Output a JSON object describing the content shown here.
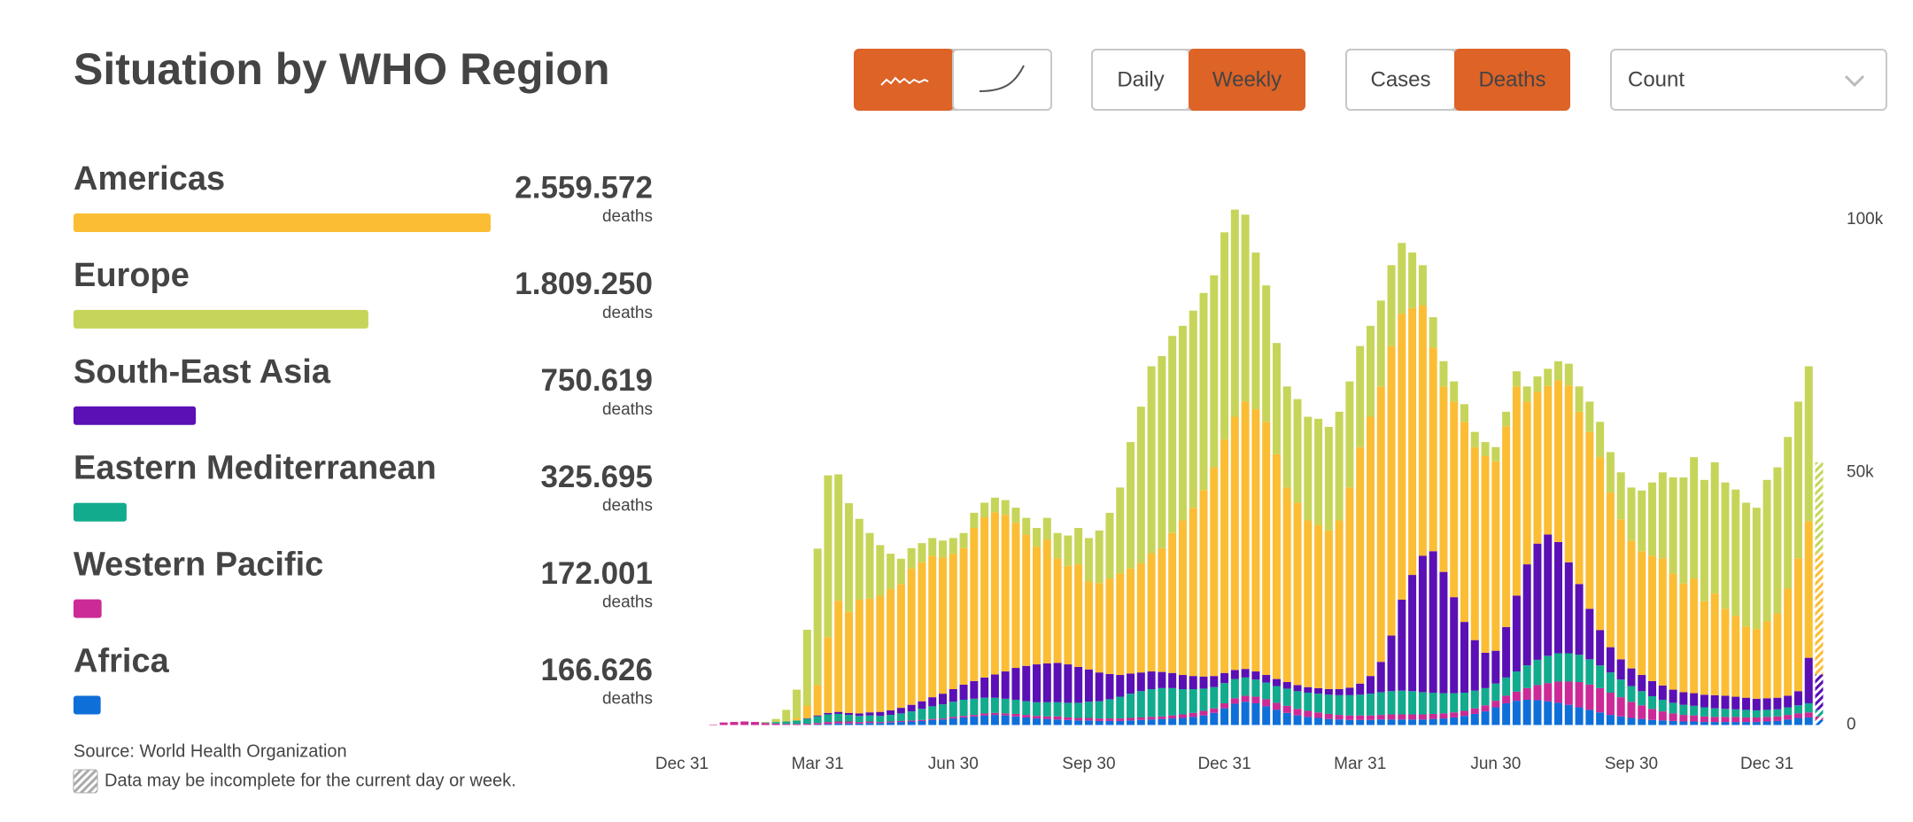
{
  "chart_data": {
    "type": "stacked_bar",
    "title": "Situation by WHO Region",
    "value_unit": "deaths",
    "source": "Source:  World Health Organization",
    "note": "Data may be incomplete for the current day or week.",
    "incomplete_last": true,
    "stack_order": [
      5,
      4,
      3,
      2,
      0,
      1
    ],
    "ylim": [
      0,
      105000
    ],
    "yticks": [
      0,
      {
        "value": 50000,
        "label": "50k"
      },
      {
        "value": 100000,
        "label": "100k"
      }
    ],
    "categories": [
      "Dec 31",
      null,
      null,
      null,
      null,
      null,
      null,
      null,
      null,
      null,
      null,
      null,
      null,
      "Mar 31",
      null,
      null,
      null,
      null,
      null,
      null,
      null,
      null,
      null,
      null,
      null,
      null,
      "Jun 30",
      null,
      null,
      null,
      null,
      null,
      null,
      null,
      null,
      null,
      null,
      null,
      null,
      "Sep 30",
      null,
      null,
      null,
      null,
      null,
      null,
      null,
      null,
      null,
      null,
      null,
      null,
      "Dec 31",
      null,
      null,
      null,
      null,
      null,
      null,
      null,
      null,
      null,
      null,
      null,
      null,
      "Mar 31",
      null,
      null,
      null,
      null,
      null,
      null,
      null,
      null,
      null,
      null,
      null,
      null,
      "Jun 30",
      null,
      null,
      null,
      null,
      null,
      null,
      null,
      null,
      null,
      null,
      null,
      null,
      "Sep 30",
      null,
      null,
      null,
      null,
      null,
      null,
      null,
      null,
      null,
      null,
      null,
      null,
      "Dec 31",
      null,
      null,
      null,
      null,
      null
    ],
    "series": [
      {
        "name": "Americas",
        "color": "#fbbd34",
        "total": 2559572,
        "total_label": "2.559.572",
        "values": [
          0,
          0,
          0,
          0,
          0,
          0,
          0,
          0,
          0,
          0,
          100,
          500,
          2500,
          6000,
          15000,
          22000,
          20000,
          22500,
          22500,
          23000,
          24000,
          24500,
          27000,
          27500,
          28000,
          27000,
          26800,
          27000,
          30300,
          31700,
          32100,
          31000,
          28700,
          26000,
          23300,
          24500,
          20700,
          19500,
          20300,
          17400,
          17700,
          18900,
          20100,
          20800,
          21600,
          23400,
          24500,
          27700,
          30600,
          33300,
          36900,
          41300,
          46200,
          50100,
          52900,
          51900,
          50100,
          44500,
          38500,
          36100,
          33000,
          32300,
          31400,
          33400,
          39600,
          46800,
          51300,
          54500,
          57300,
          56600,
          52800,
          49500,
          40300,
          36700,
          38700,
          39600,
          38200,
          38900,
          37500,
          39700,
          41400,
          32200,
          30000,
          29400,
          32000,
          35000,
          34100,
          35000,
          34200,
          30600,
          27700,
          25300,
          24500,
          24800,
          25200,
          23000,
          21500,
          22700,
          18500,
          20100,
          17200,
          16000,
          14100,
          13800,
          15200,
          16600,
          21200,
          26300,
          27000,
          24000
        ]
      },
      {
        "name": "Europe",
        "color": "#c6d55a",
        "total": 1809250,
        "total_label": "1.809.250",
        "values": [
          0,
          0,
          0,
          0,
          0,
          0,
          0,
          0,
          100,
          600,
          2200,
          5600,
          15000,
          27000,
          32000,
          25000,
          21500,
          16000,
          13000,
          10000,
          7000,
          5000,
          4000,
          3800,
          3500,
          3300,
          3100,
          3000,
          3000,
          2900,
          2900,
          2900,
          3000,
          3300,
          3700,
          4300,
          5000,
          6000,
          7200,
          8600,
          10400,
          13000,
          17000,
          25000,
          31000,
          37000,
          38000,
          39000,
          38500,
          39000,
          39000,
          38000,
          41000,
          41000,
          37000,
          31000,
          27000,
          22000,
          20000,
          20500,
          20500,
          21000,
          20500,
          21500,
          21000,
          20000,
          18000,
          17000,
          16000,
          14000,
          11000,
          8000,
          6000,
          5000,
          4000,
          3500,
          3000,
          2800,
          2800,
          2900,
          3000,
          3000,
          3100,
          3400,
          3800,
          4300,
          5000,
          6000,
          7000,
          8000,
          9300,
          10500,
          12000,
          14500,
          17000,
          19000,
          21000,
          24000,
          24000,
          26000,
          25000,
          25000,
          24500,
          24000,
          28000,
          29000,
          30000,
          31000,
          30700,
          18000
        ]
      },
      {
        "name": "South-East Asia",
        "color": "#5a10b4",
        "total": 750619,
        "total_label": "750.619",
        "values": [
          0,
          0,
          0,
          0,
          0,
          0,
          0,
          0,
          0,
          0,
          0,
          0,
          100,
          200,
          300,
          400,
          400,
          500,
          600,
          800,
          900,
          1100,
          1300,
          1500,
          1800,
          2100,
          2500,
          3000,
          3500,
          4000,
          4600,
          5400,
          6300,
          7000,
          7500,
          7700,
          7800,
          7600,
          7100,
          6400,
          5700,
          5000,
          4300,
          4000,
          3700,
          3500,
          3200,
          3000,
          2800,
          2600,
          2400,
          2200,
          2000,
          1800,
          1700,
          1600,
          1500,
          1400,
          1300,
          1200,
          1100,
          1100,
          1100,
          1200,
          1500,
          2200,
          3500,
          6000,
          11000,
          18000,
          23000,
          27000,
          28000,
          24000,
          19000,
          14000,
          10000,
          7000,
          6500,
          10000,
          15000,
          20000,
          23000,
          24000,
          22000,
          18000,
          14000,
          10000,
          7000,
          5000,
          4000,
          3500,
          3200,
          3000,
          2800,
          2600,
          2500,
          2500,
          2500,
          2600,
          2600,
          2500,
          2400,
          2300,
          2300,
          2300,
          2300,
          2800,
          9000,
          7000
        ]
      },
      {
        "name": "Eastern Mediterranean",
        "color": "#12ab8e",
        "total": 325695,
        "total_label": "325.695",
        "values": [
          0,
          0,
          0,
          0,
          0,
          0,
          0,
          0,
          100,
          300,
          500,
          700,
          1000,
          1300,
          1500,
          1500,
          1300,
          1200,
          1200,
          1200,
          1300,
          1500,
          1800,
          2200,
          2500,
          2800,
          3000,
          3200,
          3200,
          3100,
          3000,
          2900,
          2800,
          2700,
          2700,
          2800,
          2800,
          2900,
          3000,
          3200,
          3400,
          3800,
          4300,
          4800,
          5200,
          5500,
          5600,
          5400,
          5000,
          4700,
          4400,
          4200,
          4000,
          3800,
          3600,
          3400,
          3300,
          3300,
          3400,
          3500,
          3600,
          3700,
          3800,
          3900,
          4000,
          4100,
          4300,
          4500,
          4600,
          4700,
          4600,
          4400,
          4200,
          4000,
          3800,
          3600,
          3500,
          3400,
          3400,
          3600,
          4000,
          4500,
          5000,
          5400,
          5600,
          5600,
          5400,
          5000,
          4500,
          4000,
          3500,
          3100,
          2800,
          2500,
          2300,
          2100,
          2000,
          1900,
          1800,
          1700,
          1600,
          1500,
          1500,
          1400,
          1400,
          1400,
          1500,
          1600,
          1800,
          1300
        ]
      },
      {
        "name": "Western Pacific",
        "color": "#cc2a96",
        "total": 172001,
        "total_label": "172.001",
        "values": [
          0,
          0,
          0,
          100,
          500,
          600,
          700,
          600,
          400,
          300,
          200,
          200,
          200,
          300,
          400,
          400,
          400,
          300,
          300,
          200,
          200,
          200,
          200,
          200,
          200,
          200,
          300,
          300,
          300,
          400,
          400,
          400,
          500,
          500,
          500,
          500,
          600,
          500,
          500,
          500,
          500,
          500,
          500,
          500,
          500,
          500,
          500,
          600,
          700,
          800,
          900,
          900,
          1000,
          1100,
          1200,
          1300,
          1400,
          1400,
          1400,
          1300,
          1200,
          1100,
          1000,
          900,
          900,
          900,
          900,
          900,
          1000,
          1000,
          1000,
          1000,
          1000,
          1000,
          1000,
          1000,
          1100,
          1200,
          1300,
          1500,
          1800,
          2300,
          3000,
          3600,
          4200,
          4600,
          5000,
          5000,
          4800,
          4400,
          3800,
          3200,
          2700,
          2200,
          1800,
          1500,
          1300,
          1200,
          1100,
          1000,
          1000,
          1000,
          900,
          900,
          900,
          900,
          900,
          900,
          1000,
          700
        ]
      },
      {
        "name": "Africa",
        "color": "#0f6fd8",
        "total": 166626,
        "total_label": "166.626",
        "values": [
          0,
          0,
          0,
          0,
          0,
          0,
          0,
          0,
          0,
          0,
          0,
          0,
          50,
          100,
          200,
          300,
          300,
          300,
          400,
          400,
          500,
          600,
          700,
          800,
          1000,
          1100,
          1300,
          1500,
          1700,
          1900,
          2000,
          1900,
          1700,
          1500,
          1300,
          1200,
          1100,
          1000,
          900,
          900,
          800,
          800,
          800,
          900,
          1000,
          1100,
          1200,
          1300,
          1400,
          1600,
          1900,
          2400,
          3300,
          4200,
          4600,
          4300,
          3700,
          3000,
          2400,
          1900,
          1600,
          1400,
          1200,
          1100,
          1000,
          1000,
          1000,
          1100,
          1100,
          1100,
          1100,
          1100,
          1200,
          1300,
          1500,
          1800,
          2200,
          2700,
          3500,
          4300,
          4800,
          5000,
          4900,
          4700,
          4400,
          4000,
          3500,
          3000,
          2500,
          2000,
          1700,
          1400,
          1200,
          1000,
          900,
          800,
          700,
          700,
          600,
          600,
          600,
          600,
          600,
          600,
          700,
          800,
          1100,
          1400,
          1500,
          1000
        ]
      }
    ]
  },
  "controls": {
    "chart_style_selected": 0,
    "frequency": {
      "options": [
        "Daily",
        "Weekly"
      ],
      "selected": 1
    },
    "measure": {
      "options": [
        "Cases",
        "Deaths"
      ],
      "selected": 1
    },
    "metric": "Count"
  }
}
